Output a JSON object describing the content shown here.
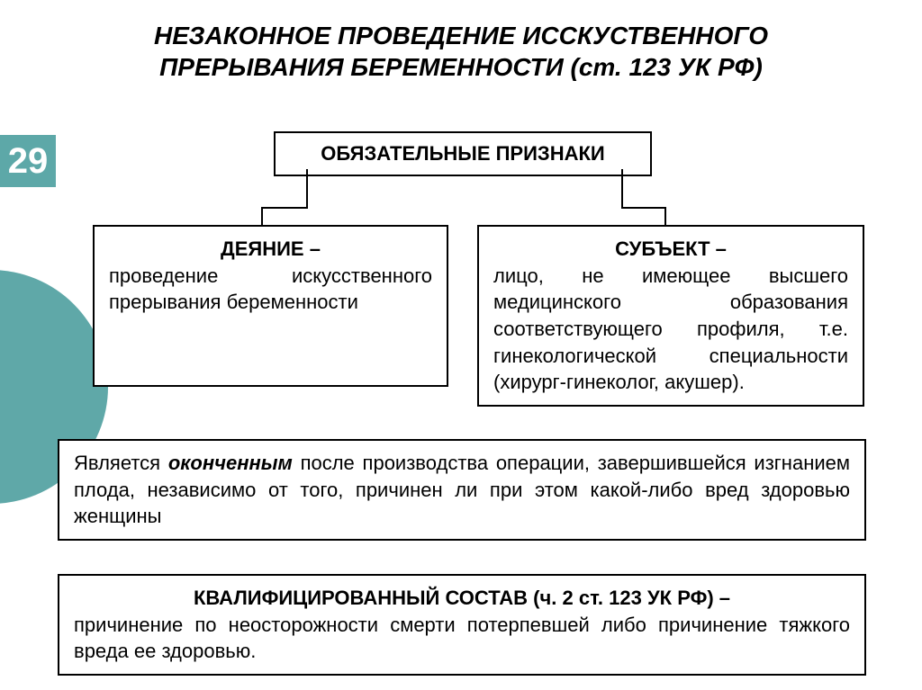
{
  "slide_number": "29",
  "title": "НЕЗАКОННОЕ ПРОВЕДЕНИЕ ИССКУСТВЕННОГО ПРЕРЫВАНИЯ БЕРЕМЕННОСТИ  (ст. 123 УК РФ)",
  "signs_box": "ОБЯЗАТЕЛЬНЫЕ ПРИЗНАКИ",
  "deed": {
    "label": "ДЕЯНИЕ – ",
    "text": "проведение искусственного прерывания беременности"
  },
  "subject": {
    "label": "СУБЪЕКТ – ",
    "text": "лицо, не имеющее высшего медицинского образования соответствующего профиля, т.е. гинекологической специальности (хирург-гинеколог, акушер)."
  },
  "finished": {
    "prefix": "Является ",
    "em": "оконченным",
    "suffix": " после производства операции, завершившейся изгнанием плода, независимо от того, причинен ли при этом какой-либо вред здоровью женщины"
  },
  "qualified": {
    "head": "КВАЛИФИЦИРОВАННЫЙ СОСТАВ (ч. 2 ст. 123 УК РФ) – ",
    "text": "причинение по неосторожности смерти потерпевшей либо причинение тяжкого вреда ее здоровью."
  },
  "colors": {
    "accent": "#5fa8a8",
    "text": "#000000",
    "background": "#ffffff"
  }
}
